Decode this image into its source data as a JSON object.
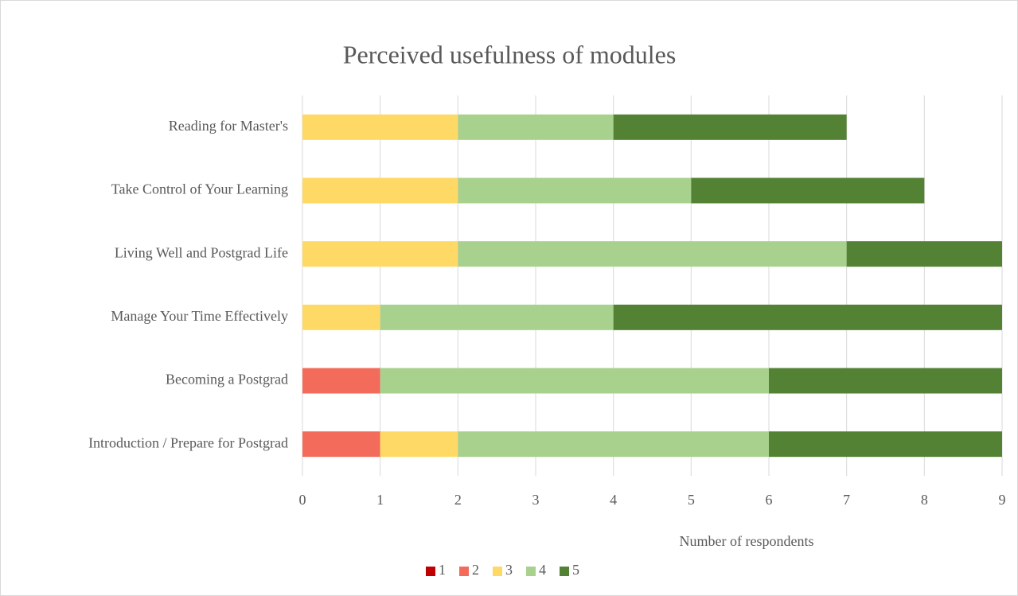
{
  "chart_data": {
    "type": "bar",
    "orientation": "horizontal",
    "stacked": true,
    "title": "Perceived usefulness of modules",
    "x_label": "Number of respondents",
    "categories": [
      "Reading for Master's",
      "Take Control of Your Learning",
      "Living Well and Postgrad Life",
      "Manage Your Time Effectively",
      "Becoming a Postgrad",
      "Introduction / Prepare for Postgrad"
    ],
    "series": [
      {
        "name": "1",
        "color": "#c00000",
        "values": [
          0,
          0,
          0,
          0,
          0,
          0
        ]
      },
      {
        "name": "2",
        "color": "#f26b5b",
        "values": [
          0,
          0,
          0,
          0,
          1,
          1
        ]
      },
      {
        "name": "3",
        "color": "#ffd966",
        "values": [
          2,
          2,
          2,
          1,
          0,
          1
        ]
      },
      {
        "name": "4",
        "color": "#a9d18e",
        "values": [
          2,
          3,
          5,
          3,
          5,
          4
        ]
      },
      {
        "name": "5",
        "color": "#548235",
        "values": [
          3,
          3,
          2,
          5,
          3,
          3
        ]
      }
    ],
    "xlim": [
      0,
      9
    ],
    "xticks": [
      0,
      1,
      2,
      3,
      4,
      5,
      6,
      7,
      8,
      9
    ],
    "grid": true,
    "legend": "bottom"
  }
}
